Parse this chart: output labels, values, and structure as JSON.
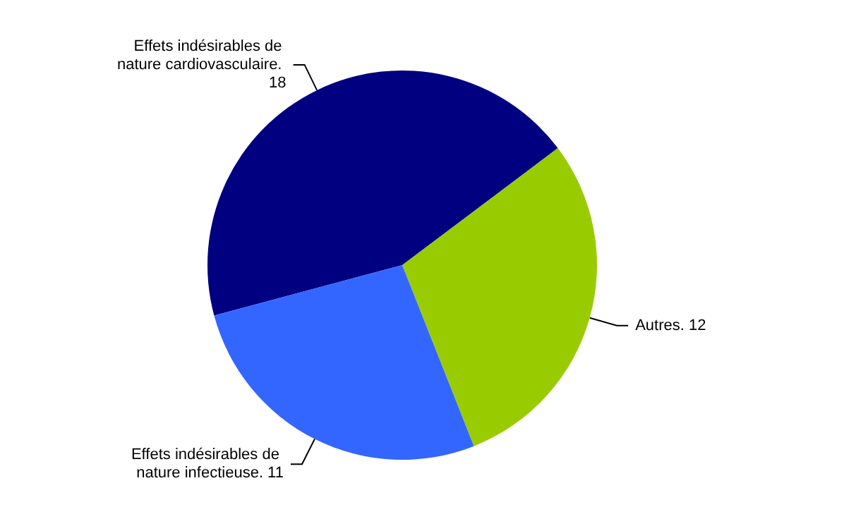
{
  "chart_data": {
    "type": "pie",
    "categories": [
      "Effets indésirables de nature cardiovasculaire.",
      "Autres.",
      "Effets indésirables de nature infectieuse."
    ],
    "values": [
      18,
      12,
      11
    ],
    "value_labels": [
      "18",
      "12",
      "11"
    ],
    "colors": [
      "#000080",
      "#99cc00",
      "#3366ff"
    ],
    "legend": false
  }
}
